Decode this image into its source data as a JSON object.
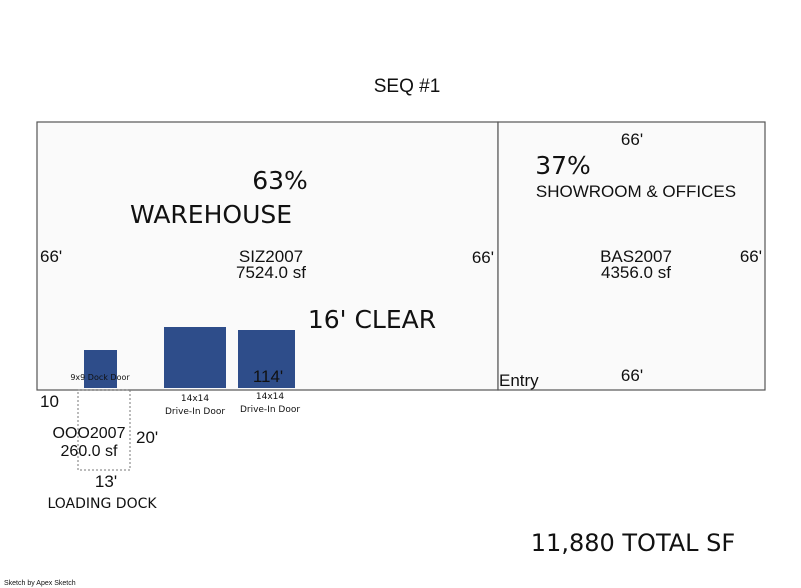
{
  "header": {
    "title": "SEQ #1"
  },
  "areas": [
    {
      "percent": "63%",
      "name": "WAREHOUSE",
      "code": "SIZ2007",
      "area": "7524.0 sf",
      "left": "66'",
      "right": "66'",
      "bottom": "114'",
      "note": "16' CLEAR"
    },
    {
      "percent": "37%",
      "name": "SHOWROOM & OFFICES",
      "code": "BAS2007",
      "area": "4356.0 sf",
      "top": "66'",
      "right": "66'",
      "bottom": "66'",
      "note": "Entry"
    },
    {
      "code": "OOO2007",
      "area": "260.0 sf",
      "left": "10",
      "right": "20'",
      "bottom": "13'",
      "name": "LOADING DOCK"
    }
  ],
  "doors": [
    {
      "size": "9x9",
      "label": "Dock Door"
    },
    {
      "size": "14x14",
      "label": "Drive-In Door"
    },
    {
      "size": "14x14",
      "label": "Drive-In Door"
    }
  ],
  "total": "11,880 TOTAL SF",
  "footer": "Sketch by Apex Sketch"
}
